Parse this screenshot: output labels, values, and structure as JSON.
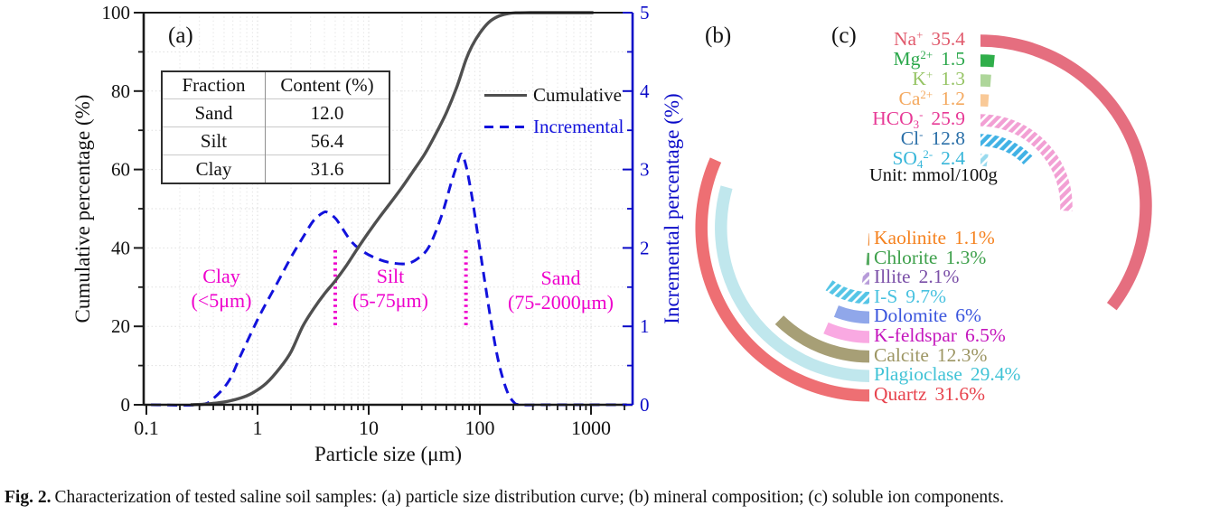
{
  "figure": {
    "panel_labels": {
      "a": "(a)",
      "b": "(b)",
      "c": "(c)"
    },
    "caption": {
      "bold": "Fig. 2.",
      "text": "Characterization of tested saline soil samples: (a) particle size distribution curve; (b) mineral composition; (c) soluble ion components."
    }
  },
  "chart_data": [
    {
      "id": "particle_size_distribution",
      "type": "line",
      "xlabel": "Particle size (μm)",
      "ylabel_left": "Cumulative percentage (%)",
      "ylabel_right": "Incremental percentage (%)",
      "x_scale": "log",
      "x_range": [
        0.1,
        2000
      ],
      "x_ticks": [
        0.1,
        1,
        10,
        100,
        1000
      ],
      "y_left_range": [
        0,
        100
      ],
      "y_left_ticks": [
        0,
        20,
        40,
        60,
        80,
        100
      ],
      "y_right_range": [
        0,
        5
      ],
      "y_right_ticks": [
        0,
        1,
        2,
        3,
        4,
        5
      ],
      "grid": true,
      "legend_position": "upper-right-inside",
      "colors": {
        "cumulative": "#4f4f4f",
        "incremental": "#1212dc",
        "right_axis": "#0a0ac8",
        "region": "#ee00cc"
      },
      "series": [
        {
          "name": "Cumulative",
          "axis": "left",
          "style": "solid",
          "points": [
            [
              0.25,
              0
            ],
            [
              0.35,
              0.2
            ],
            [
              0.5,
              0.7
            ],
            [
              0.7,
              1.7
            ],
            [
              0.9,
              3
            ],
            [
              1.2,
              5.5
            ],
            [
              1.6,
              9.5
            ],
            [
              2,
              13.5
            ],
            [
              2.55,
              20
            ],
            [
              3.2,
              24.5
            ],
            [
              4,
              28.3
            ],
            [
              5,
              31.6
            ],
            [
              6.3,
              35.5
            ],
            [
              8,
              40
            ],
            [
              10,
              44
            ],
            [
              12.5,
              47.8
            ],
            [
              16,
              51.8
            ],
            [
              20,
              55.5
            ],
            [
              25,
              59.5
            ],
            [
              32,
              64
            ],
            [
              40,
              69
            ],
            [
              50,
              74.5
            ],
            [
              62,
              81
            ],
            [
              75,
              88
            ],
            [
              85,
              91.5
            ],
            [
              100,
              94.8
            ],
            [
              120,
              97.5
            ],
            [
              145,
              99
            ],
            [
              175,
              99.7
            ],
            [
              210,
              99.95
            ],
            [
              280,
              100
            ],
            [
              500,
              100
            ],
            [
              1050,
              100
            ]
          ]
        },
        {
          "name": "Incremental",
          "axis": "right",
          "style": "dashed",
          "points": [
            [
              0.11,
              0
            ],
            [
              0.3,
              0
            ],
            [
              0.4,
              0.08
            ],
            [
              0.55,
              0.3
            ],
            [
              0.7,
              0.62
            ],
            [
              0.9,
              0.95
            ],
            [
              1.1,
              1.2
            ],
            [
              1.5,
              1.55
            ],
            [
              2,
              1.88
            ],
            [
              2.6,
              2.15
            ],
            [
              3.2,
              2.35
            ],
            [
              3.9,
              2.45
            ],
            [
              4.3,
              2.45
            ],
            [
              5,
              2.38
            ],
            [
              5.5,
              2.3
            ],
            [
              7,
              2.08
            ],
            [
              9,
              1.95
            ],
            [
              12,
              1.86
            ],
            [
              16,
              1.81
            ],
            [
              22,
              1.8
            ],
            [
              28,
              1.87
            ],
            [
              35,
              2.02
            ],
            [
              45,
              2.4
            ],
            [
              55,
              2.82
            ],
            [
              62,
              3.05
            ],
            [
              68,
              3.2
            ],
            [
              75,
              3.05
            ],
            [
              85,
              2.65
            ],
            [
              95,
              2.2
            ],
            [
              110,
              1.6
            ],
            [
              130,
              0.95
            ],
            [
              150,
              0.5
            ],
            [
              175,
              0.18
            ],
            [
              200,
              0.04
            ],
            [
              230,
              0
            ],
            [
              400,
              0
            ],
            [
              900,
              0
            ],
            [
              2100,
              0
            ]
          ]
        }
      ],
      "regions": [
        {
          "name": "Clay",
          "range": "(<5μm)"
        },
        {
          "name": "Silt",
          "range": "(5-75μm)"
        },
        {
          "name": "Sand",
          "range": "(75-2000μm)"
        }
      ],
      "boundaries_um": [
        5,
        75
      ],
      "inset_table": {
        "headers": [
          "Fraction",
          "Content (%)"
        ],
        "rows": [
          [
            "Sand",
            "12.0"
          ],
          [
            "Silt",
            "56.4"
          ],
          [
            "Clay",
            "31.6"
          ]
        ]
      }
    },
    {
      "id": "mineral_composition",
      "type": "radial_bar",
      "unit": "%",
      "series": [
        {
          "name": "Kaolinite",
          "value": 1.1,
          "display": "1.1%",
          "text_color": "#f5821f",
          "arc_color": "#f08a35",
          "hatch": false
        },
        {
          "name": "Chlorite",
          "value": 1.3,
          "display": "1.3%",
          "text_color": "#3ea04b",
          "arc_color": "#57ab62",
          "hatch": false
        },
        {
          "name": "Illite",
          "value": 2.1,
          "display": "2.1%",
          "text_color": "#7b50a8",
          "arc_color": "#b79bd9",
          "hatch": true
        },
        {
          "name": "I-S",
          "value": 9.7,
          "display": "9.7%",
          "text_color": "#49c2e0",
          "arc_color": "#55c5e6",
          "hatch": true
        },
        {
          "name": "Dolomite",
          "value": 6,
          "display": "6%",
          "text_color": "#3a55dd",
          "arc_color": "#90a7ea",
          "hatch": false
        },
        {
          "name": "K-feldspar",
          "value": 6.5,
          "display": "6.5%",
          "text_color": "#c417bd",
          "arc_color": "#f9a9e2",
          "hatch": false
        },
        {
          "name": "Calcite",
          "value": 12.3,
          "display": "12.3%",
          "text_color": "#9d9664",
          "arc_color": "#a79f76",
          "hatch": false
        },
        {
          "name": "Plagioclase",
          "value": 29.4,
          "display": "29.4%",
          "text_color": "#41c3d6",
          "arc_color": "#c0e7ed",
          "hatch": false
        },
        {
          "name": "Quartz",
          "value": 31.6,
          "display": "31.6%",
          "text_color": "#e7434d",
          "arc_color": "#ee6f73",
          "hatch": false
        }
      ]
    },
    {
      "id": "soluble_ion_components",
      "type": "radial_bar",
      "unit_label": "Unit: mmol/100g",
      "series": [
        {
          "segments": [
            {
              "t": "Na"
            },
            {
              "t": "+",
              "sup": true
            }
          ],
          "value": 35.4,
          "display": "35.4",
          "text_color": "#e15b6d",
          "arc_color": "#e56e7f",
          "hatch": false
        },
        {
          "segments": [
            {
              "t": "Mg"
            },
            {
              "t": "2+",
              "sup": true
            }
          ],
          "value": 1.5,
          "display": "1.5",
          "text_color": "#2ca84c",
          "arc_color": "#2fae4a",
          "hatch": false
        },
        {
          "segments": [
            {
              "t": "K"
            },
            {
              "t": "+",
              "sup": true
            }
          ],
          "value": 1.3,
          "display": "1.3",
          "text_color": "#96c465",
          "arc_color": "#aed69a",
          "hatch": false
        },
        {
          "segments": [
            {
              "t": "Ca"
            },
            {
              "t": "2+",
              "sup": true
            }
          ],
          "value": 1.2,
          "display": "1.2",
          "text_color": "#f4a95f",
          "arc_color": "#f9c997",
          "hatch": false
        },
        {
          "segments": [
            {
              "t": "HCO"
            },
            {
              "t": "3",
              "sub": true
            },
            {
              "t": "-",
              "sup": true
            }
          ],
          "value": 25.9,
          "display": "25.9",
          "text_color": "#e73a96",
          "arc_color": "#f2a0d4",
          "hatch": true
        },
        {
          "segments": [
            {
              "t": "Cl"
            },
            {
              "t": "-",
              "sup": true
            }
          ],
          "value": 12.8,
          "display": "12.8",
          "text_color": "#2a6fa8",
          "arc_color": "#41b2e5",
          "hatch": true
        },
        {
          "segments": [
            {
              "t": "SO"
            },
            {
              "t": "4",
              "sub": true
            },
            {
              "t": "2-",
              "sup": true
            }
          ],
          "value": 2.4,
          "display": "2.4",
          "text_color": "#36b6d9",
          "arc_color": "#98daee",
          "hatch": true
        }
      ]
    }
  ]
}
